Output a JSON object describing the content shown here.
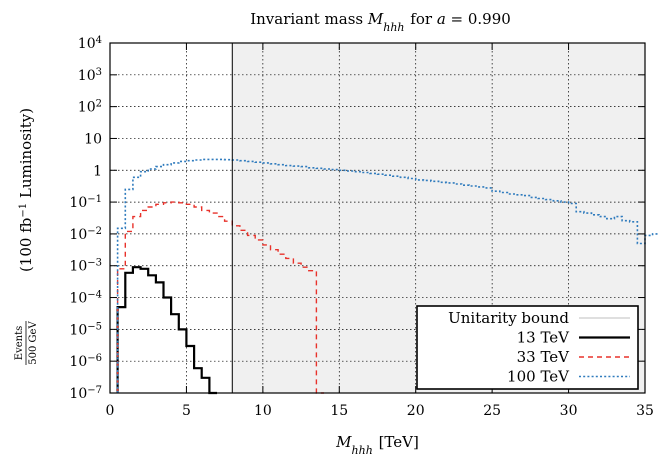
{
  "chart_data": {
    "type": "line",
    "title": "Invariant mass M_hhh for a = 0.990",
    "title_parts": {
      "prefix": "Invariant mass ",
      "var": "M",
      "sub": "hhh",
      "suffix": " for ",
      "var2": "a",
      "value": " = 0.990"
    },
    "xlabel": "M_hhh [TeV]",
    "xlabel_parts": {
      "var": "M",
      "sub": "hhh",
      "unit": " [TeV]"
    },
    "ylabel": "Events / 500 GeV (100 fb^-1 Luminosity)",
    "ylabel_parts": {
      "frac_num": "Events",
      "frac_den": "500 GeV",
      "rest_a": "(100 fb",
      "sup": "−1",
      "rest_b": " Luminosity)"
    },
    "x_range": [
      0,
      35
    ],
    "y_range": [
      1e-07,
      10000
    ],
    "y_scale": "log",
    "grid": true,
    "x_ticks": [
      "0",
      "5",
      "10",
      "15",
      "20",
      "25",
      "30",
      "35"
    ],
    "y_ticks": [
      {
        "v": 10000.0,
        "base": "10",
        "exp": "4"
      },
      {
        "v": 1000.0,
        "base": "10",
        "exp": "3"
      },
      {
        "v": 100.0,
        "base": "10",
        "exp": "2"
      },
      {
        "v": 10,
        "base": "10",
        "exp": ""
      },
      {
        "v": 1,
        "base": "1",
        "exp": ""
      },
      {
        "v": 0.1,
        "base": "10",
        "exp": "-1"
      },
      {
        "v": 0.01,
        "base": "10",
        "exp": "-2"
      },
      {
        "v": 0.001,
        "base": "10",
        "exp": "-3"
      },
      {
        "v": 0.0001,
        "base": "10",
        "exp": "-4"
      },
      {
        "v": 1e-05,
        "base": "10",
        "exp": "-5"
      },
      {
        "v": 1e-06,
        "base": "10",
        "exp": "-6"
      },
      {
        "v": 1e-07,
        "base": "10",
        "exp": "-7"
      }
    ],
    "unitarity_bound_x": 8.0,
    "excluded_region": [
      8.0,
      35
    ],
    "legend_position": "bottom-right",
    "bin_width": 0.5,
    "series": [
      {
        "name": "Unitarity bound",
        "style": "solid-thin",
        "color": "#aaaaaa",
        "values": []
      },
      {
        "name": "13 TeV",
        "style": "solid",
        "color": "#000000",
        "x_start": 0.5,
        "values": [
          5e-05,
          0.0006,
          0.0009,
          0.0008,
          0.0005,
          0.0003,
          0.0001,
          3e-05,
          1e-05,
          3e-06,
          6e-07,
          3e-07,
          1e-07
        ]
      },
      {
        "name": "33 TeV",
        "style": "dashed",
        "color": "#e8322b",
        "x_start": 0.5,
        "values": [
          0.0008,
          0.012,
          0.035,
          0.055,
          0.07,
          0.085,
          0.095,
          0.1,
          0.095,
          0.085,
          0.07,
          0.055,
          0.045,
          0.035,
          0.025,
          0.018,
          0.013,
          0.009,
          0.0065,
          0.0045,
          0.0032,
          0.0023,
          0.0017,
          0.0012,
          0.0009,
          0.0007,
          1e-07
        ]
      },
      {
        "name": "100 TeV",
        "style": "dotted",
        "color": "#2f7bbd",
        "x_start": 0.5,
        "values": [
          0.015,
          0.25,
          0.6,
          0.9,
          1.1,
          1.3,
          1.5,
          1.7,
          1.9,
          2.0,
          2.1,
          2.2,
          2.2,
          2.2,
          2.15,
          2.1,
          2.0,
          1.9,
          1.8,
          1.7,
          1.6,
          1.5,
          1.4,
          1.35,
          1.3,
          1.2,
          1.15,
          1.1,
          1.05,
          1.0,
          0.95,
          0.9,
          0.85,
          0.8,
          0.75,
          0.7,
          0.65,
          0.6,
          0.55,
          0.5,
          0.48,
          0.45,
          0.42,
          0.4,
          0.37,
          0.34,
          0.32,
          0.3,
          0.28,
          0.22,
          0.2,
          0.18,
          0.17,
          0.16,
          0.14,
          0.13,
          0.12,
          0.11,
          0.1,
          0.09,
          0.05,
          0.045,
          0.04,
          0.035,
          0.03,
          0.035,
          0.026,
          0.024,
          0.005,
          0.009,
          0.01,
          0.006,
          0.009
        ]
      }
    ]
  }
}
